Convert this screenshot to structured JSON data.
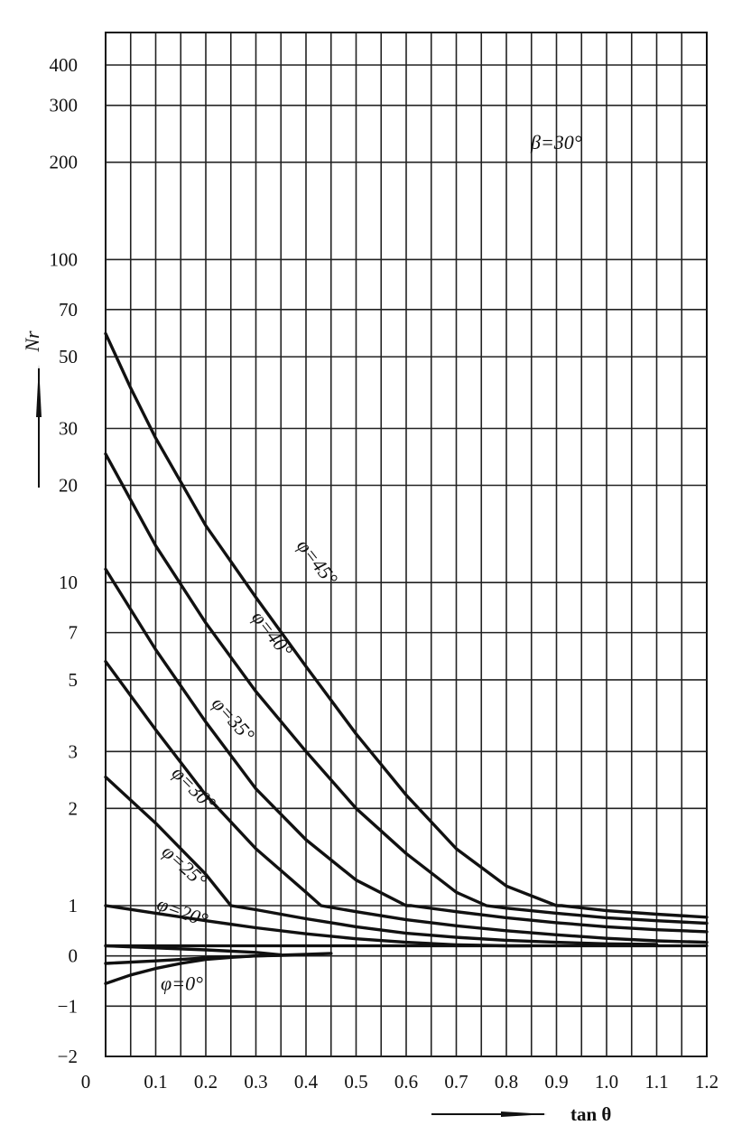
{
  "chart_data": {
    "type": "line",
    "title": "",
    "annotation": "β=30°",
    "xlabel": "tan θ",
    "ylabel": "Nr",
    "x_ticks": [
      "0",
      "0.1",
      "0.2",
      "0.3",
      "0.4",
      "0.5",
      "0.6",
      "0.7",
      "0.8",
      "0.9",
      "1.0",
      "1.1",
      "1.2"
    ],
    "xlim": [
      0,
      1.2
    ],
    "y_ticks": [
      "400",
      "300",
      "200",
      "100",
      "70",
      "50",
      "30",
      "20",
      "10",
      "7",
      "5",
      "3",
      "2",
      "1",
      "0",
      "-1",
      "-2"
    ],
    "y_scale": "logarithmic above 1, linear from -2 to 1",
    "grid": true,
    "series": [
      {
        "name": "φ=45°",
        "x": [
          0.0,
          0.05,
          0.1,
          0.2,
          0.3,
          0.4,
          0.5,
          0.6,
          0.7,
          0.8,
          0.9,
          0.91,
          1.0,
          1.1,
          1.2
        ],
        "y": [
          59,
          40,
          28,
          15,
          9,
          5.5,
          3.4,
          2.2,
          1.5,
          1.15,
          1.0,
          1.0,
          0.9,
          0.83,
          0.77
        ]
      },
      {
        "name": "φ=40°",
        "x": [
          0.0,
          0.1,
          0.2,
          0.3,
          0.4,
          0.5,
          0.6,
          0.7,
          0.76,
          0.8,
          0.9,
          1.0,
          1.1,
          1.2
        ],
        "y": [
          25,
          13,
          7.5,
          4.6,
          3.0,
          2.0,
          1.45,
          1.1,
          1.0,
          0.95,
          0.85,
          0.76,
          0.7,
          0.65
        ]
      },
      {
        "name": "φ=35°",
        "x": [
          0.0,
          0.1,
          0.2,
          0.3,
          0.4,
          0.5,
          0.6,
          0.61,
          0.7,
          0.8,
          0.9,
          1.0,
          1.1,
          1.2
        ],
        "y": [
          11,
          6.2,
          3.7,
          2.3,
          1.6,
          1.2,
          1.0,
          1.0,
          0.88,
          0.76,
          0.66,
          0.58,
          0.52,
          0.48
        ]
      },
      {
        "name": "φ=30°",
        "x": [
          0.0,
          0.1,
          0.2,
          0.3,
          0.4,
          0.43,
          0.5,
          0.6,
          0.7,
          0.8,
          0.9,
          1.0,
          1.1,
          1.2
        ],
        "y": [
          5.7,
          3.5,
          2.2,
          1.5,
          1.1,
          1.0,
          0.88,
          0.72,
          0.6,
          0.5,
          0.42,
          0.35,
          0.3,
          0.27
        ]
      },
      {
        "name": "φ=25°",
        "x": [
          0.0,
          0.1,
          0.2,
          0.25,
          0.3,
          0.4,
          0.5,
          0.6,
          0.7,
          0.8,
          0.9,
          1.0,
          1.1
        ],
        "y": [
          2.5,
          1.8,
          1.25,
          1.0,
          0.92,
          0.74,
          0.58,
          0.45,
          0.37,
          0.31,
          0.27,
          0.24,
          0.23
        ]
      },
      {
        "name": "φ=20°",
        "x": [
          0.0,
          0.1,
          0.2,
          0.3,
          0.4,
          0.5,
          0.6,
          0.7,
          0.8,
          0.85
        ],
        "y": [
          1.0,
          0.85,
          0.7,
          0.56,
          0.44,
          0.34,
          0.27,
          0.22,
          0.2,
          0.2
        ]
      },
      {
        "name": "",
        "x": [
          0.0,
          0.1,
          0.2,
          0.3,
          0.35
        ],
        "y": [
          0.2,
          0.16,
          0.12,
          0.07,
          0.02
        ]
      },
      {
        "name": "",
        "x": [
          0.0,
          0.1,
          0.2,
          0.3,
          0.4,
          0.45
        ],
        "y": [
          -0.15,
          -0.1,
          -0.04,
          0.0,
          0.03,
          0.05
        ]
      },
      {
        "name": "φ=0°",
        "x": [
          0.0,
          0.05,
          0.1,
          0.15,
          0.2,
          0.25,
          0.3,
          0.4
        ],
        "y": [
          -0.55,
          -0.38,
          -0.25,
          -0.15,
          -0.07,
          -0.03,
          0.0,
          0.02
        ]
      },
      {
        "name": "",
        "x": [
          0.0,
          1.2
        ],
        "y": [
          0.2,
          0.2
        ]
      }
    ]
  }
}
